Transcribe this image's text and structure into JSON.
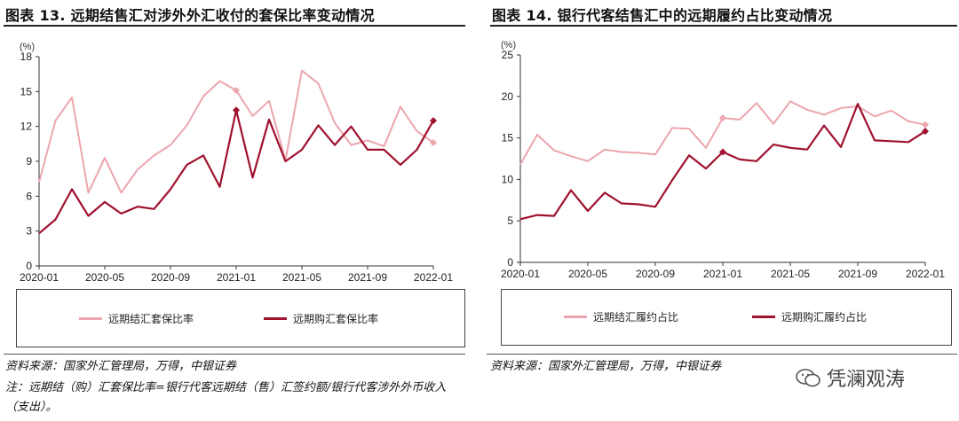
{
  "colors": {
    "light": "#EBA6AE",
    "dark": "#A0122E"
  },
  "panels": [
    {
      "title": "图表 13. 远期结售汇对涉外外汇收付的套保比率变动情况",
      "source": "资料来源：国家外汇管理局，万得，中银证券",
      "note": "注：远期结（购）汇套保比率=银行代客远期结（售）汇签约额/银行代客涉外外币收入（支出）。"
    },
    {
      "title": "图表 14. 银行代客结售汇中的远期履约占比变动情况",
      "source": "资料来源：国家外汇管理局，万得，中银证券"
    }
  ],
  "watermark": "凭澜观涛",
  "chart_data": [
    {
      "type": "line",
      "unit_label": "(%)",
      "ylim": [
        0,
        18
      ],
      "yticks": [
        0,
        3,
        6,
        9,
        12,
        15,
        18
      ],
      "xtick_labels": [
        "2020-01",
        "2020-05",
        "2020-09",
        "2021-01",
        "2021-05",
        "2021-09",
        "2022-01"
      ],
      "x": [
        "2020-01",
        "2020-02",
        "2020-03",
        "2020-04",
        "2020-05",
        "2020-06",
        "2020-07",
        "2020-08",
        "2020-09",
        "2020-10",
        "2020-11",
        "2020-12",
        "2021-01",
        "2021-02",
        "2021-03",
        "2021-04",
        "2021-05",
        "2021-06",
        "2021-07",
        "2021-08",
        "2021-09",
        "2021-10",
        "2021-11",
        "2021-12",
        "2022-01"
      ],
      "legend_position": "bottom",
      "series": [
        {
          "name": "远期结汇套保比率",
          "color_key": "light",
          "values": [
            7.2,
            12.5,
            14.5,
            6.3,
            9.3,
            6.3,
            8.3,
            9.5,
            10.4,
            12.1,
            14.6,
            15.9,
            15.1,
            12.9,
            14.2,
            9.1,
            16.8,
            15.7,
            12.3,
            10.4,
            10.8,
            10.3,
            13.7,
            11.6,
            10.6
          ],
          "marker_index": [
            12,
            24
          ]
        },
        {
          "name": "远期购汇套保比率",
          "color_key": "dark",
          "values": [
            2.8,
            4.0,
            6.6,
            4.3,
            5.5,
            4.5,
            5.1,
            4.9,
            6.6,
            8.7,
            9.5,
            6.8,
            13.4,
            7.6,
            12.6,
            9.0,
            10.0,
            12.1,
            10.4,
            12.0,
            10.0,
            10.0,
            8.7,
            10.0,
            12.5
          ],
          "marker_index": [
            12,
            24
          ]
        }
      ]
    },
    {
      "type": "line",
      "unit_label": "(%)",
      "ylim": [
        0,
        25
      ],
      "yticks": [
        0,
        5,
        10,
        15,
        20,
        25
      ],
      "xtick_labels": [
        "2020-01",
        "2020-05",
        "2020-09",
        "2021-01",
        "2021-05",
        "2021-09",
        "2022-01"
      ],
      "x": [
        "2020-01",
        "2020-02",
        "2020-03",
        "2020-04",
        "2020-05",
        "2020-06",
        "2020-07",
        "2020-08",
        "2020-09",
        "2020-10",
        "2020-11",
        "2020-12",
        "2021-01",
        "2021-02",
        "2021-03",
        "2021-04",
        "2021-05",
        "2021-06",
        "2021-07",
        "2021-08",
        "2021-09",
        "2021-10",
        "2021-11",
        "2021-12",
        "2022-01"
      ],
      "legend_position": "bottom",
      "series": [
        {
          "name": "远期结汇履约占比",
          "color_key": "light",
          "values": [
            11.8,
            15.4,
            13.5,
            12.8,
            12.2,
            13.6,
            13.3,
            13.2,
            13.0,
            16.2,
            16.1,
            13.8,
            17.4,
            17.2,
            19.2,
            16.7,
            19.4,
            18.4,
            17.8,
            18.6,
            18.8,
            17.6,
            18.3,
            17.0,
            16.6
          ],
          "marker_index": [
            12,
            24
          ]
        },
        {
          "name": "远期购汇履约占比",
          "color_key": "dark",
          "values": [
            5.2,
            5.7,
            5.6,
            8.7,
            6.2,
            8.4,
            7.1,
            7.0,
            6.7,
            9.9,
            12.9,
            11.3,
            13.3,
            12.4,
            12.2,
            14.2,
            13.8,
            13.6,
            16.5,
            13.9,
            19.1,
            14.7,
            14.6,
            14.5,
            15.8
          ],
          "marker_index": [
            12,
            24
          ]
        }
      ]
    }
  ]
}
